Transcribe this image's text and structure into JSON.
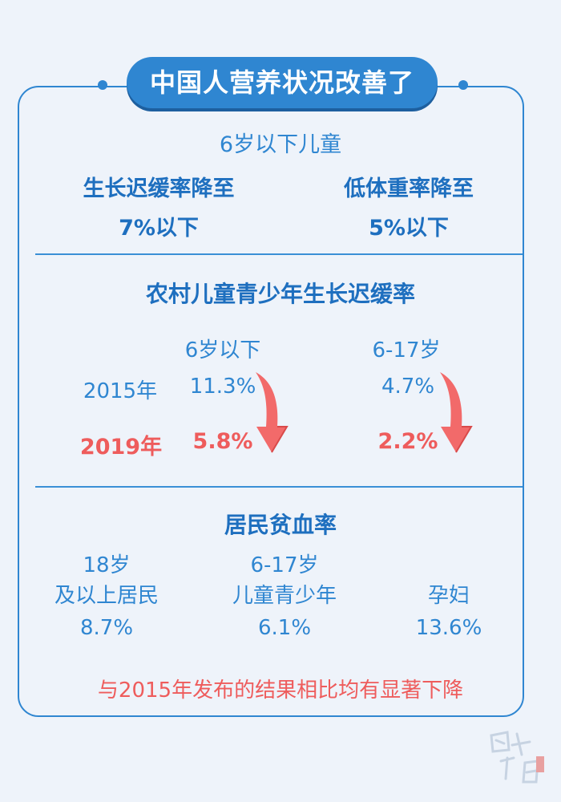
{
  "title": "中国人营养状况改善了",
  "section1": {
    "heading": "6岁以下儿童",
    "left_label": "生长迟缓率降至",
    "left_value": "7%以下",
    "right_label": "低体重率降至",
    "right_value": "5%以下"
  },
  "section2": {
    "heading": "农村儿童青少年生长迟缓率",
    "col1": "6岁以下",
    "col2": "6-17岁",
    "row2015_label": "2015年",
    "row2015_v1": "11.3%",
    "row2015_v2": "4.7%",
    "row2019_label": "2019年",
    "row2019_v1": "5.8%",
    "row2019_v2": "2.2%"
  },
  "section3": {
    "heading": "居民贫血率",
    "group1_line1": "18岁",
    "group1_line2": "及以上居民",
    "group1_value": "8.7%",
    "group2_line1": "6-17岁",
    "group2_line2": "儿童青少年",
    "group2_value": "6.1%",
    "group3_label": "孕妇",
    "group3_value": "13.6%"
  },
  "footer_note": "与2015年发布的结果相比均有显著下降",
  "colors": {
    "accent": "#2f86d1",
    "highlight": "#ee5c5c",
    "background": "#eef3fa"
  },
  "icons": [
    "down-arrow-icon",
    "logo-seal-icon"
  ]
}
